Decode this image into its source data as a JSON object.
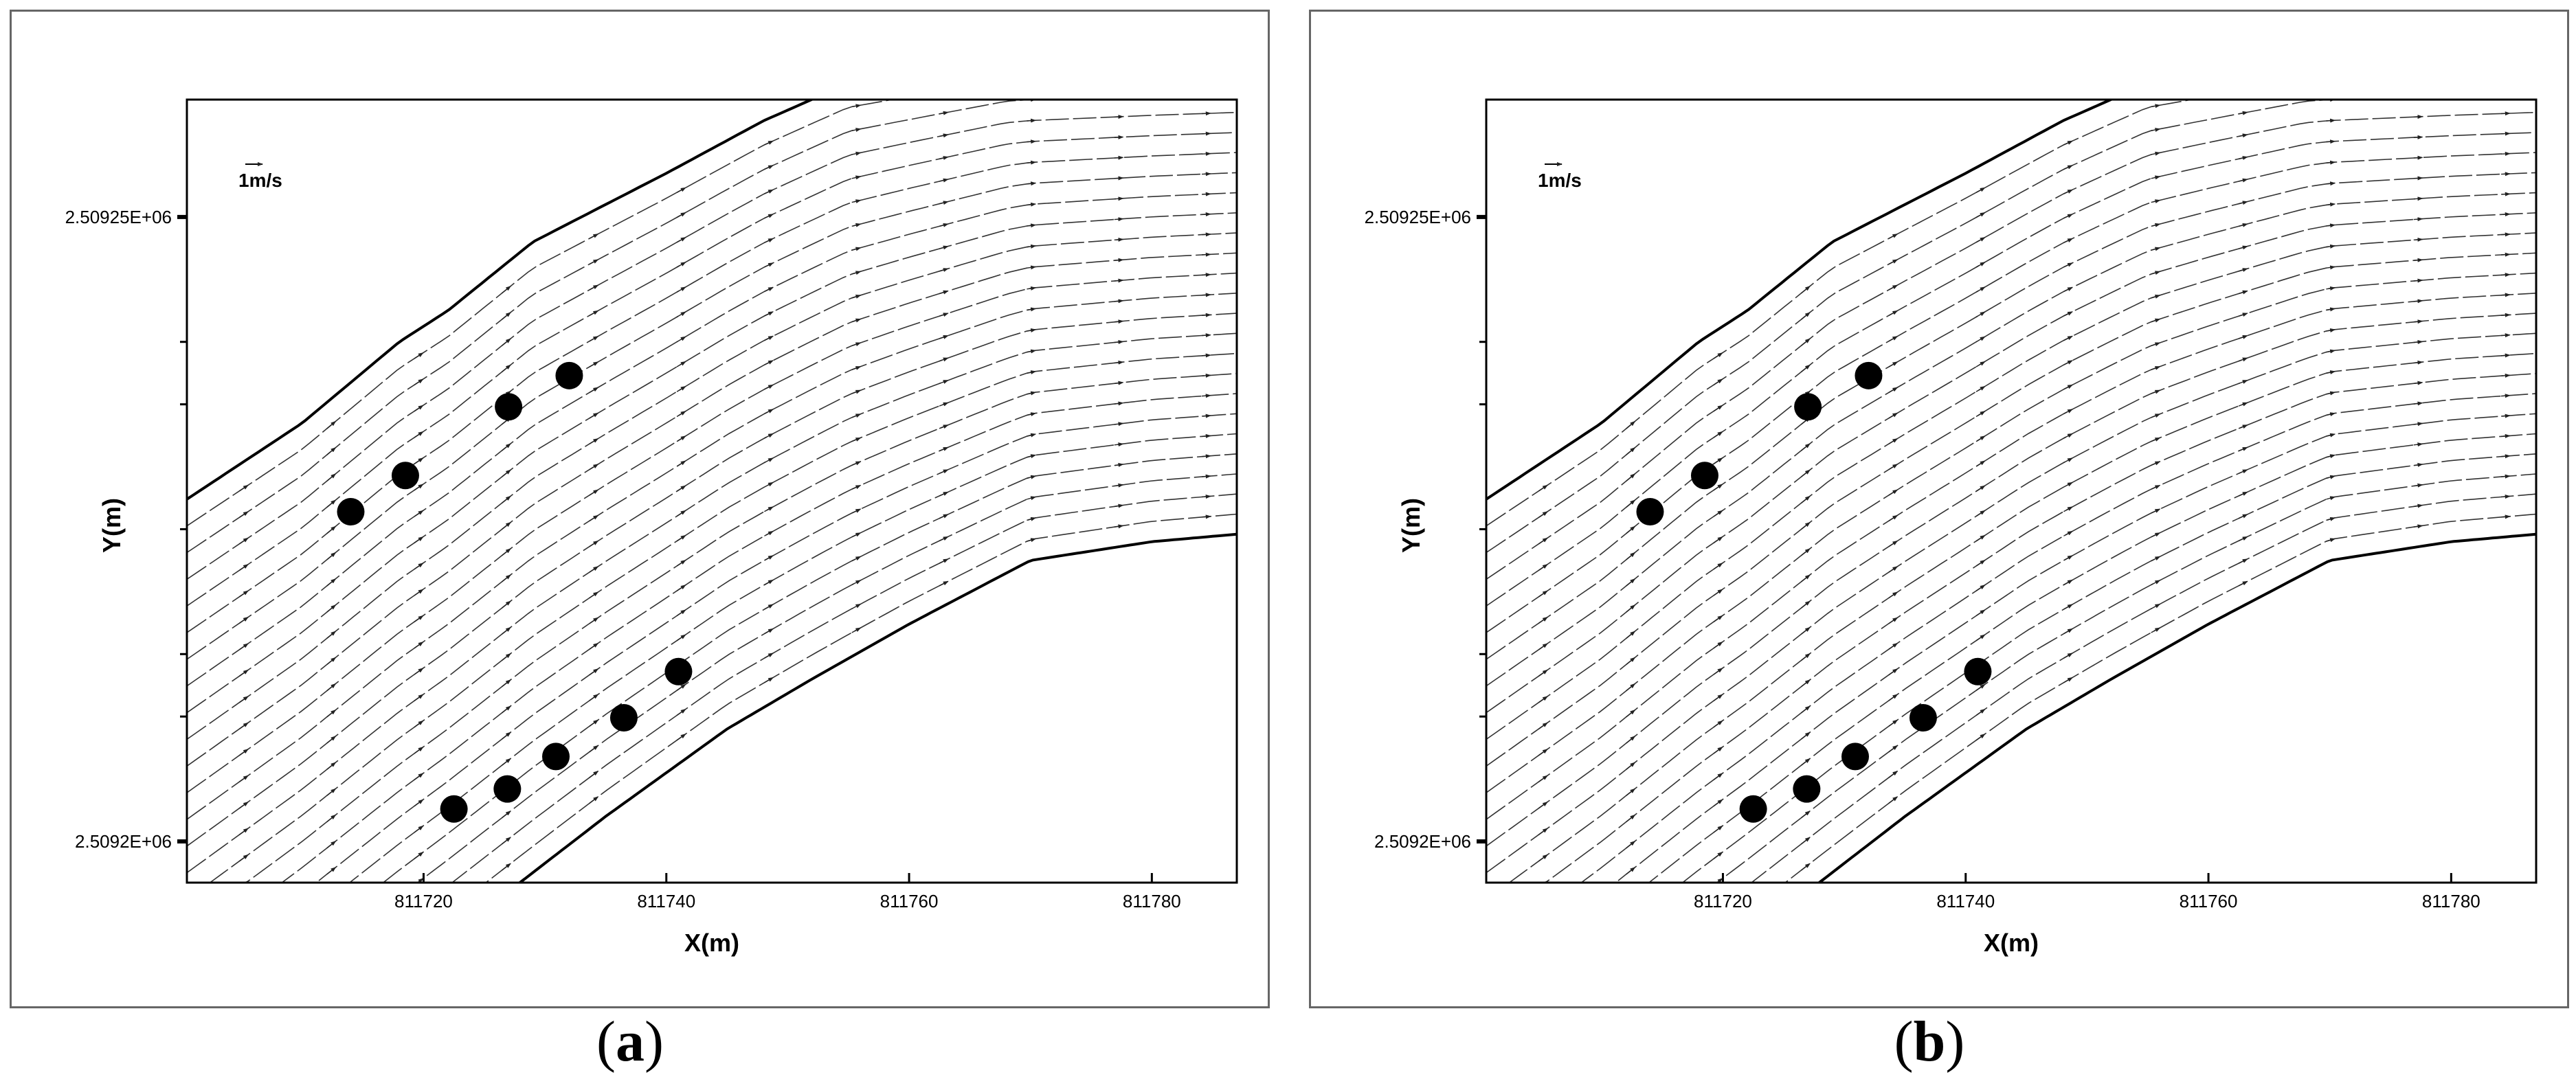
{
  "figure": {
    "panels": [
      {
        "id": "a",
        "caption_letter": "a"
      },
      {
        "id": "b",
        "caption_letter": "b"
      }
    ]
  },
  "chart_data": [
    {
      "type": "vector-field",
      "panel": "a",
      "xlabel": "X(m)",
      "ylabel": "Y(m)",
      "xlim": [
        811700.5,
        811787
      ],
      "ylim": [
        2509196.7,
        2509259.4
      ],
      "x_ticks": [
        811720,
        811740,
        811760,
        811780
      ],
      "x_tick_labels": [
        "811720",
        "811740",
        "811760",
        "811780"
      ],
      "y_ticks": [
        2509200,
        2509225,
        2509250
      ],
      "y_tick_labels": [
        "2.5092E+06",
        "",
        "2.50925E+06"
      ],
      "y_minor_ticks": [
        2509210,
        2509215,
        2509235,
        2509240
      ],
      "reference_vector_label": "1m/s",
      "reference_vector_speed": 1,
      "piers": [
        {
          "x": 811714.0,
          "y": 2509226.4
        },
        {
          "x": 811718.5,
          "y": 2509229.3
        },
        {
          "x": 811727.0,
          "y": 2509234.8
        },
        {
          "x": 811732.0,
          "y": 2509237.3
        },
        {
          "x": 811722.5,
          "y": 2509202.6
        },
        {
          "x": 811726.9,
          "y": 2509204.2
        },
        {
          "x": 811730.9,
          "y": 2509206.8
        },
        {
          "x": 811736.5,
          "y": 2509209.9
        },
        {
          "x": 811741.0,
          "y": 2509213.6
        }
      ],
      "left_bank": [
        [
          811700.5,
          2509227.4
        ],
        [
          811710,
          2509233.5
        ],
        [
          811718,
          2509240.0
        ],
        [
          811722,
          2509242.5
        ],
        [
          811729,
          2509248.0
        ],
        [
          811740,
          2509253.5
        ],
        [
          811748,
          2509257.7
        ],
        [
          811755,
          2509260.7
        ],
        [
          811768,
          2509262.7
        ],
        [
          811787,
          2509263.2
        ]
      ],
      "right_bank": [
        [
          811723,
          2509193.0
        ],
        [
          811735,
          2509202.0
        ],
        [
          811745,
          2509209.0
        ],
        [
          811752,
          2509213.0
        ],
        [
          811760,
          2509217.4
        ],
        [
          811770,
          2509222.5
        ],
        [
          811780,
          2509224.0
        ],
        [
          811787,
          2509224.6
        ]
      ]
    },
    {
      "type": "vector-field",
      "panel": "b",
      "xlabel": "X(m)",
      "ylabel": "Y(m)",
      "xlim": [
        811700.5,
        811787
      ],
      "ylim": [
        2509196.7,
        2509259.4
      ],
      "x_ticks": [
        811720,
        811740,
        811760,
        811780
      ],
      "x_tick_labels": [
        "811720",
        "811740",
        "811760",
        "811780"
      ],
      "y_ticks": [
        2509200,
        2509225,
        2509250
      ],
      "y_tick_labels": [
        "2.5092E+06",
        "",
        "2.50925E+06"
      ],
      "y_minor_ticks": [
        2509210,
        2509215,
        2509235,
        2509240
      ],
      "reference_vector_label": "1m/s",
      "reference_vector_speed": 1,
      "piers": [
        {
          "x": 811714.0,
          "y": 2509226.4
        },
        {
          "x": 811718.5,
          "y": 2509229.3
        },
        {
          "x": 811727.0,
          "y": 2509234.8
        },
        {
          "x": 811732.0,
          "y": 2509237.3
        },
        {
          "x": 811722.5,
          "y": 2509202.6
        },
        {
          "x": 811726.9,
          "y": 2509204.2
        },
        {
          "x": 811730.9,
          "y": 2509206.8
        },
        {
          "x": 811736.5,
          "y": 2509209.9
        },
        {
          "x": 811741.0,
          "y": 2509213.6
        }
      ],
      "left_bank": [
        [
          811700.5,
          2509227.4
        ],
        [
          811710,
          2509233.5
        ],
        [
          811718,
          2509240.0
        ],
        [
          811722,
          2509242.5
        ],
        [
          811729,
          2509248.0
        ],
        [
          811740,
          2509253.5
        ],
        [
          811748,
          2509257.7
        ],
        [
          811755,
          2509260.7
        ],
        [
          811768,
          2509262.7
        ],
        [
          811787,
          2509263.2
        ]
      ],
      "right_bank": [
        [
          811723,
          2509193.0
        ],
        [
          811735,
          2509202.0
        ],
        [
          811745,
          2509209.0
        ],
        [
          811752,
          2509213.0
        ],
        [
          811760,
          2509217.4
        ],
        [
          811770,
          2509222.5
        ],
        [
          811780,
          2509224.0
        ],
        [
          811787,
          2509224.6
        ]
      ]
    }
  ]
}
